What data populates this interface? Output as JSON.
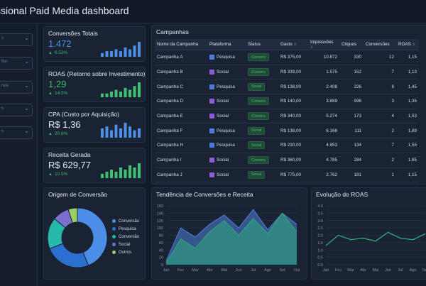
{
  "header": {
    "title": "ssional Paid Media dashboard"
  },
  "filters": [
    {
      "value": "s"
    },
    {
      "value": "ltur"
    },
    {
      "value": "nos"
    },
    {
      "value": "s"
    },
    {
      "value": "s"
    }
  ],
  "kpis": [
    {
      "label": "Conversões Totais",
      "value": "1.472",
      "delta": "6.53%",
      "color": "#4e8fe6",
      "bars": [
        2,
        3,
        3,
        4,
        3,
        5,
        4,
        6,
        8
      ]
    },
    {
      "label": "ROAS (Retorno sobre Investimento)",
      "value": "1,29",
      "delta": "14.5%",
      "color": "#3fbf73",
      "bars": [
        2,
        2,
        3,
        4,
        3,
        5,
        4,
        6,
        8
      ]
    },
    {
      "label": "CPA (Custo por Aquisição)",
      "value": "R$ 1,36",
      "delta": "20.6%",
      "color": "#4e8fe6",
      "bars": [
        5,
        6,
        4,
        7,
        5,
        8,
        6,
        4,
        5
      ]
    },
    {
      "label": "Receita Gerada",
      "value": "R$ 629,77",
      "delta": "10.5%",
      "color": "#3fbf73",
      "bars": [
        2,
        3,
        4,
        3,
        5,
        4,
        6,
        5,
        7
      ]
    }
  ],
  "campaigns": {
    "title": "Campanhas",
    "columns": [
      "Nome da Campanha",
      "Plataforma",
      "Status",
      "Gasto",
      "Impressões",
      "Cliques",
      "Conversões",
      "ROAS"
    ],
    "rows": [
      {
        "name": "Campanha A",
        "platform": "Pesquisa",
        "icon": "search-icon",
        "status": "Convers",
        "spend": "R$ 375,00",
        "impressions": "10.872",
        "clicks": "330",
        "conversions": "12",
        "roas": "1,15"
      },
      {
        "name": "Campanha B",
        "platform": "Social",
        "icon": "social-icon",
        "status": "Convers",
        "spend": "R$ 339,00",
        "impressions": "1.575",
        "clicks": "152",
        "conversions": "7",
        "roas": "1,13"
      },
      {
        "name": "Campanha C",
        "platform": "Pesquisa",
        "icon": "search-icon",
        "status": "Social",
        "spend": "R$ 138,00",
        "impressions": "2.408",
        "clicks": "226",
        "conversions": "6",
        "roas": "1,45"
      },
      {
        "name": "Campanha D",
        "platform": "Social",
        "icon": "social-icon",
        "status": "Convers",
        "spend": "R$ 140,00",
        "impressions": "3.869",
        "clicks": "596",
        "conversions": "3",
        "roas": "1,35"
      },
      {
        "name": "Campanha E",
        "platform": "Social",
        "icon": "social-icon",
        "status": "Convers",
        "spend": "R$ 340,00",
        "impressions": "5.274",
        "clicks": "173",
        "conversions": "4",
        "roas": "1,53"
      },
      {
        "name": "Campanha F",
        "platform": "Pesquisa",
        "icon": "search-icon",
        "status": "Social",
        "spend": "R$ 138,00",
        "impressions": "6.166",
        "clicks": "111",
        "conversions": "2",
        "roas": "1,89"
      },
      {
        "name": "Campanha H",
        "platform": "Pesquisa",
        "icon": "search-icon",
        "status": "Social",
        "spend": "R$ 230,00",
        "impressions": "4.953",
        "clicks": "134",
        "conversions": "7",
        "roas": "1,55"
      },
      {
        "name": "Campanha I",
        "platform": "Social",
        "icon": "social-icon",
        "status": "Convers",
        "spend": "R$ 360,00",
        "impressions": "4.785",
        "clicks": "284",
        "conversions": "2",
        "roas": "1,85"
      },
      {
        "name": "Campanha J",
        "platform": "Social",
        "icon": "social-icon",
        "status": "Social",
        "spend": "R$ 775,00",
        "impressions": "2.762",
        "clicks": "181",
        "conversions": "1",
        "roas": "1,15"
      }
    ]
  },
  "origin": {
    "title": "Origem de Conversão",
    "chart_data": {
      "type": "pie",
      "labels": [
        "Conversão",
        "Pesquisa",
        "Conversão",
        "Social",
        "Outros"
      ],
      "values": [
        44,
        25,
        17,
        9,
        5
      ],
      "colors": [
        "#4a8ee8",
        "#2b6fd1",
        "#26b8a8",
        "#7a6fcf",
        "#9ccf63"
      ]
    }
  },
  "trend": {
    "title": "Tendência de Conversões e Receita",
    "chart_data": {
      "type": "area",
      "categories": [
        "Jan",
        "Fev",
        "Mar",
        "Abr",
        "Mai",
        "Jun",
        "Jul",
        "Ago",
        "Set",
        "Out"
      ],
      "yticks": [
        0,
        20,
        40,
        60,
        80,
        100,
        120,
        140,
        160
      ],
      "ylim": [
        0,
        160
      ],
      "series": [
        {
          "values": [
            10,
            100,
            75,
            110,
            135,
            100,
            150,
            95,
            140,
            110
          ],
          "color": "#4e7fd8"
        },
        {
          "values": [
            5,
            70,
            45,
            90,
            120,
            80,
            125,
            85,
            140,
            90
          ],
          "color": "#2fa97a"
        }
      ]
    }
  },
  "roas": {
    "title": "Evolução do ROAS",
    "chart_data": {
      "type": "line",
      "categories": [
        "Jan",
        "Fev",
        "Mar",
        "Abr",
        "Mai",
        "Jun",
        "Jul",
        "Ago",
        "Set"
      ],
      "yticks": [
        0.0,
        0.5,
        1.0,
        1.5,
        2.0,
        2.5,
        3.0,
        3.5,
        4.0
      ],
      "ylim": [
        0,
        4
      ],
      "series": [
        {
          "values": [
            1.3,
            2.0,
            1.7,
            1.8,
            1.6,
            2.2,
            1.8,
            1.7,
            2.1
          ],
          "color": "#2fb37c"
        }
      ]
    }
  }
}
